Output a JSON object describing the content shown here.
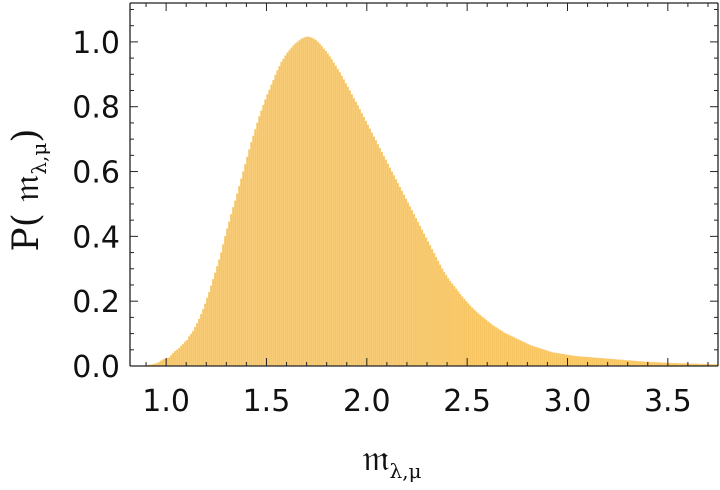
{
  "chart_data": {
    "type": "bar",
    "title": "",
    "xlabel": "𝔪",
    "xlabel_sub": "λ,μ",
    "ylabel": "P( 𝔪",
    "ylabel_sub": "λ,μ",
    "ylabel_close": ")",
    "xlim": [
      0.82,
      3.75
    ],
    "ylim": [
      0.0,
      1.12
    ],
    "xticks": [
      1.0,
      1.5,
      2.0,
      2.5,
      3.0,
      3.5
    ],
    "xtick_labels": [
      "1.0",
      "1.5",
      "2.0",
      "2.5",
      "3.0",
      "3.5"
    ],
    "yticks": [
      0.0,
      0.2,
      0.4,
      0.6,
      0.8,
      1.0
    ],
    "ytick_labels": [
      "0.0",
      "0.2",
      "0.4",
      "0.6",
      "0.8",
      "1.0"
    ],
    "bar_color": "#f5b73b",
    "bar_edge_color": "#f9d694",
    "bin_width": 0.01,
    "bin_start": 0.9,
    "values": [
      0.003,
      0.004,
      0.004,
      0.005,
      0.007,
      0.009,
      0.012,
      0.016,
      0.02,
      0.022,
      0.024,
      0.026,
      0.033,
      0.04,
      0.046,
      0.05,
      0.055,
      0.062,
      0.068,
      0.075,
      0.08,
      0.091,
      0.099,
      0.108,
      0.12,
      0.132,
      0.145,
      0.16,
      0.175,
      0.192,
      0.21,
      0.228,
      0.248,
      0.268,
      0.288,
      0.308,
      0.328,
      0.35,
      0.375,
      0.4,
      0.424,
      0.445,
      0.468,
      0.49,
      0.51,
      0.532,
      0.555,
      0.578,
      0.6,
      0.622,
      0.645,
      0.668,
      0.69,
      0.71,
      0.73,
      0.75,
      0.77,
      0.788,
      0.805,
      0.822,
      0.838,
      0.852,
      0.868,
      0.882,
      0.898,
      0.912,
      0.925,
      0.938,
      0.948,
      0.958,
      0.967,
      0.975,
      0.982,
      0.989,
      0.995,
      1.0,
      1.005,
      1.01,
      1.012,
      1.015,
      1.016,
      1.015,
      1.013,
      1.01,
      1.006,
      1.0,
      0.994,
      0.987,
      0.979,
      0.972,
      0.964,
      0.955,
      0.946,
      0.936,
      0.926,
      0.916,
      0.906,
      0.895,
      0.884,
      0.872,
      0.861,
      0.85,
      0.838,
      0.826,
      0.815,
      0.804,
      0.792,
      0.78,
      0.768,
      0.756,
      0.744,
      0.732,
      0.72,
      0.708,
      0.696,
      0.684,
      0.672,
      0.66,
      0.648,
      0.636,
      0.624,
      0.612,
      0.6,
      0.588,
      0.576,
      0.564,
      0.552,
      0.54,
      0.528,
      0.516,
      0.504,
      0.492,
      0.48,
      0.468,
      0.456,
      0.444,
      0.432,
      0.42,
      0.408,
      0.396,
      0.384,
      0.372,
      0.36,
      0.348,
      0.336,
      0.324,
      0.312,
      0.3,
      0.29,
      0.28,
      0.271,
      0.262,
      0.254,
      0.246,
      0.238,
      0.23,
      0.222,
      0.214,
      0.207,
      0.2,
      0.193,
      0.186,
      0.18,
      0.174,
      0.168,
      0.162,
      0.157,
      0.152,
      0.147,
      0.142,
      0.137,
      0.132,
      0.127,
      0.123,
      0.119,
      0.115,
      0.111,
      0.107,
      0.103,
      0.1,
      0.097,
      0.094,
      0.091,
      0.088,
      0.085,
      0.082,
      0.079,
      0.076,
      0.073,
      0.07,
      0.067,
      0.064,
      0.062,
      0.06,
      0.058,
      0.056,
      0.054,
      0.052,
      0.05,
      0.048,
      0.046,
      0.044,
      0.042,
      0.041,
      0.04,
      0.039,
      0.038,
      0.037,
      0.036,
      0.035,
      0.034,
      0.033,
      0.032,
      0.031,
      0.03,
      0.03,
      0.029,
      0.029,
      0.028,
      0.028,
      0.027,
      0.027,
      0.026,
      0.026,
      0.025,
      0.025,
      0.024,
      0.024,
      0.023,
      0.023,
      0.022,
      0.022,
      0.021,
      0.021,
      0.02,
      0.02,
      0.019,
      0.019,
      0.018,
      0.018,
      0.017,
      0.017,
      0.016,
      0.016,
      0.015,
      0.015,
      0.014,
      0.014,
      0.013,
      0.013,
      0.013,
      0.012,
      0.012,
      0.012,
      0.011,
      0.011,
      0.011,
      0.01,
      0.01,
      0.01,
      0.01,
      0.009,
      0.009,
      0.009,
      0.009,
      0.008,
      0.008,
      0.008,
      0.008,
      0.008,
      0.007,
      0.007,
      0.007,
      0.007,
      0.007,
      0.006,
      0.006,
      0.006,
      0.006,
      0.006,
      0.006,
      0.005,
      0.005,
      0.005,
      0.005,
      0.005,
      0.005
    ]
  }
}
